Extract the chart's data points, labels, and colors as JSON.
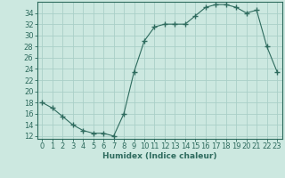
{
  "x": [
    0,
    1,
    2,
    3,
    4,
    5,
    6,
    7,
    8,
    9,
    10,
    11,
    12,
    13,
    14,
    15,
    16,
    17,
    18,
    19,
    20,
    21,
    22,
    23
  ],
  "y": [
    18,
    17,
    15.5,
    14,
    13,
    12.5,
    12.5,
    12,
    16,
    23.5,
    29,
    31.5,
    32,
    32,
    32,
    33.5,
    35,
    35.5,
    35.5,
    35,
    34,
    34.5,
    28,
    23.5
  ],
  "xlim": [
    -0.5,
    23.5
  ],
  "ylim": [
    11.5,
    36.0
  ],
  "yticks": [
    12,
    14,
    16,
    18,
    20,
    22,
    24,
    26,
    28,
    30,
    32,
    34
  ],
  "xticks": [
    0,
    1,
    2,
    3,
    4,
    5,
    6,
    7,
    8,
    9,
    10,
    11,
    12,
    13,
    14,
    15,
    16,
    17,
    18,
    19,
    20,
    21,
    22,
    23
  ],
  "xlabel": "Humidex (Indice chaleur)",
  "line_color": "#2e6b5e",
  "marker": "+",
  "marker_size": 4,
  "bg_color": "#cce8e0",
  "grid_color": "#aacfc8",
  "label_fontsize": 6.5,
  "tick_fontsize": 6
}
